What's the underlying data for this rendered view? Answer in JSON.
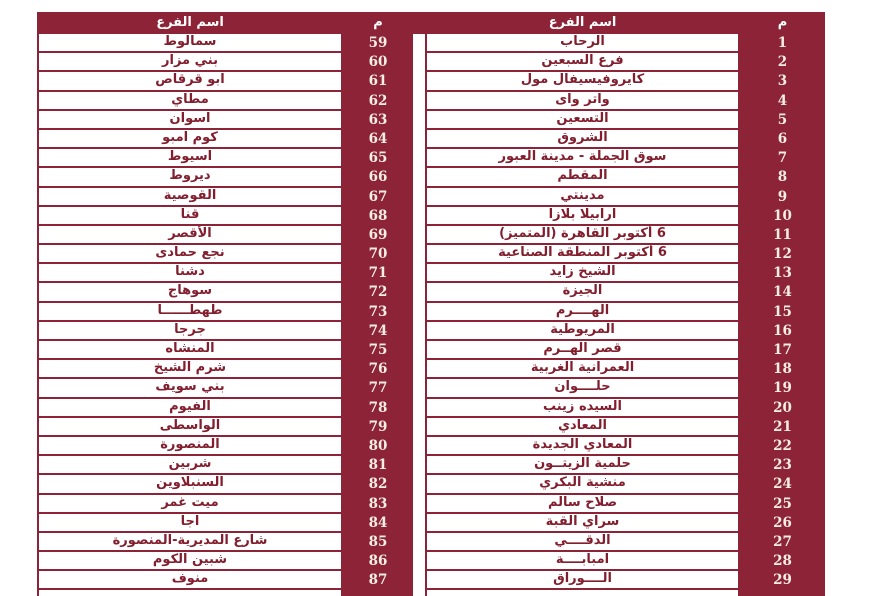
{
  "colors": {
    "maroon": "#8C2336",
    "text_maroon": "#821E2E",
    "number_text": "#F5EEE3",
    "page_bg": "#FFFFFF"
  },
  "header": {
    "branch_name_label": "اسم الفرع",
    "serial_label": "م"
  },
  "tables": {
    "right_table": {
      "rows": [
        {
          "num": "1",
          "name": "الرحاب"
        },
        {
          "num": "2",
          "name": "فرع السبعين"
        },
        {
          "num": "3",
          "name": "كايروفيسيفال مول"
        },
        {
          "num": "4",
          "name": "واتر واى"
        },
        {
          "num": "5",
          "name": "التسعين"
        },
        {
          "num": "6",
          "name": "الشروق"
        },
        {
          "num": "7",
          "name": "سوق الجملة - مدينة العبور"
        },
        {
          "num": "8",
          "name": "المقطم"
        },
        {
          "num": "9",
          "name": "مدينتي"
        },
        {
          "num": "10",
          "name": "ارابيلا بلازا"
        },
        {
          "num": "11",
          "name": "6 أكتوبر القاهرة (المتميز)"
        },
        {
          "num": "12",
          "name": "6 أكتوبر المنطقة الصناعية"
        },
        {
          "num": "13",
          "name": "الشيخ زايد"
        },
        {
          "num": "14",
          "name": "الجيزة"
        },
        {
          "num": "15",
          "name": "الهــــرم"
        },
        {
          "num": "16",
          "name": "المريوطية"
        },
        {
          "num": "17",
          "name": "قصر الهــرم"
        },
        {
          "num": "18",
          "name": "العمرانية الغربية"
        },
        {
          "num": "19",
          "name": "حلــــوان"
        },
        {
          "num": "20",
          "name": "السيده زينب"
        },
        {
          "num": "21",
          "name": "المعادي"
        },
        {
          "num": "22",
          "name": "المعادي الجديدة"
        },
        {
          "num": "23",
          "name": "حلمية الزيتــون"
        },
        {
          "num": "24",
          "name": "منشية البكري"
        },
        {
          "num": "25",
          "name": "صلاح سالم"
        },
        {
          "num": "26",
          "name": "سراي القبة"
        },
        {
          "num": "27",
          "name": "الدقــــي"
        },
        {
          "num": "28",
          "name": "امبابــــة"
        },
        {
          "num": "29",
          "name": "الــــوراق"
        },
        {
          "num": "",
          "name": ""
        }
      ]
    },
    "left_table": {
      "rows": [
        {
          "num": "59",
          "name": "سمالوط"
        },
        {
          "num": "60",
          "name": "بني مزار"
        },
        {
          "num": "61",
          "name": "ابو قرقاص"
        },
        {
          "num": "62",
          "name": "مطاي"
        },
        {
          "num": "63",
          "name": "اسوان"
        },
        {
          "num": "64",
          "name": "كوم امبو"
        },
        {
          "num": "65",
          "name": "اسيوط"
        },
        {
          "num": "66",
          "name": "ديروط"
        },
        {
          "num": "67",
          "name": "القوصية"
        },
        {
          "num": "68",
          "name": "قنا"
        },
        {
          "num": "69",
          "name": "الأقصر"
        },
        {
          "num": "70",
          "name": "نجع حمادى"
        },
        {
          "num": "71",
          "name": "دشنا"
        },
        {
          "num": "72",
          "name": "سوهاج"
        },
        {
          "num": "73",
          "name": "طهطــــــا"
        },
        {
          "num": "74",
          "name": "جرجا"
        },
        {
          "num": "75",
          "name": "المنشاه"
        },
        {
          "num": "76",
          "name": "شرم الشيخ"
        },
        {
          "num": "77",
          "name": "بني سويف"
        },
        {
          "num": "78",
          "name": "الفيوم"
        },
        {
          "num": "79",
          "name": "الواسطى"
        },
        {
          "num": "80",
          "name": "المنصورة"
        },
        {
          "num": "81",
          "name": "شربين"
        },
        {
          "num": "82",
          "name": "السنبلاوين"
        },
        {
          "num": "83",
          "name": "ميت غمر"
        },
        {
          "num": "84",
          "name": "اجا"
        },
        {
          "num": "85",
          "name": "شارع المديرية-المنصورة"
        },
        {
          "num": "86",
          "name": "شبين الكوم"
        },
        {
          "num": "87",
          "name": "منوف"
        },
        {
          "num": "",
          "name": ""
        }
      ]
    }
  }
}
